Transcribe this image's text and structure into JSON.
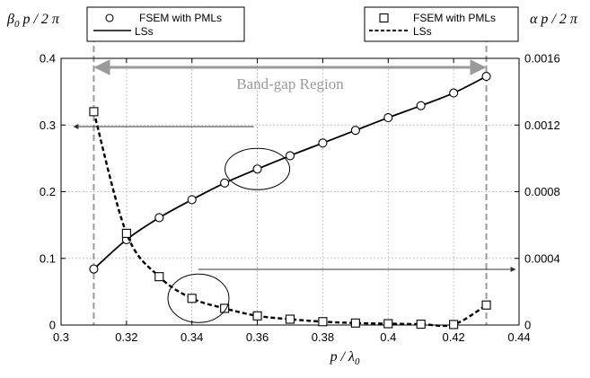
{
  "chart_data": {
    "type": "line",
    "xlabel": {
      "main": "p / λ",
      "sub": "0"
    },
    "ylabel_left": {
      "pre": "β",
      "sub": "0",
      "post": " p / 2 π"
    },
    "ylabel_right": "α p / 2 π",
    "xlim": [
      0.3,
      0.44
    ],
    "ylim_left": [
      0,
      0.4
    ],
    "ylim_right": [
      0,
      0.0016
    ],
    "x_ticks": [
      0.3,
      0.32,
      0.34,
      0.36,
      0.38,
      0.4,
      0.42,
      0.44
    ],
    "x_tick_labels": [
      "0.3",
      "0.32",
      "0.34",
      "0.36",
      "0.38",
      "0.4",
      "0.42",
      "0.44"
    ],
    "y_left_ticks": [
      0,
      0.1,
      0.2,
      0.3,
      0.4
    ],
    "y_left_tick_labels": [
      "0",
      "0.1",
      "0.2",
      "0.3",
      "0.4"
    ],
    "y_right_ticks": [
      0,
      0.0004,
      0.0008,
      0.0012,
      0.0016
    ],
    "y_right_tick_labels": [
      "0",
      "0.0004",
      "0.0008",
      "0.0012",
      "0.0016"
    ],
    "grid": true,
    "annotation": "Band-gap Region",
    "band_gap": [
      0.31,
      0.43
    ],
    "legends": [
      {
        "position": "top-left",
        "marker_label": "FSEM with PMLs",
        "line_label": "LSs"
      },
      {
        "position": "top-right",
        "marker_label": "FSEM with PMLs",
        "line_label": "LSs"
      }
    ],
    "series": [
      {
        "axis": "left",
        "marker": "circle",
        "line": "solid",
        "x": [
          0.31,
          0.32,
          0.33,
          0.34,
          0.35,
          0.36,
          0.37,
          0.38,
          0.39,
          0.4,
          0.41,
          0.42,
          0.43
        ],
        "y": [
          0.084,
          0.128,
          0.161,
          0.188,
          0.213,
          0.234,
          0.254,
          0.273,
          0.292,
          0.311,
          0.329,
          0.348,
          0.373
        ]
      },
      {
        "axis": "right",
        "marker": "square",
        "line": "dashed",
        "x": [
          0.31,
          0.32,
          0.33,
          0.34,
          0.35,
          0.36,
          0.37,
          0.38,
          0.39,
          0.4,
          0.41,
          0.42,
          0.43
        ],
        "y": [
          0.00128,
          0.00055,
          0.00029,
          0.00016,
          0.0001,
          5.5e-05,
          3.5e-05,
          2e-05,
          1.2e-05,
          8e-06,
          5e-06,
          3e-06,
          0.00012
        ]
      }
    ]
  }
}
